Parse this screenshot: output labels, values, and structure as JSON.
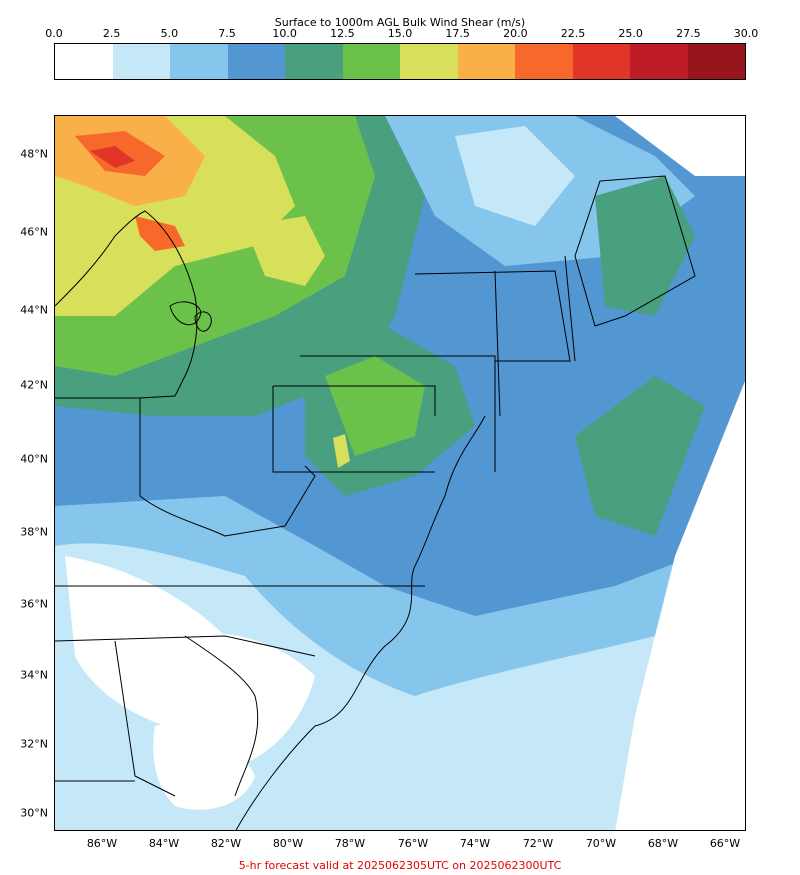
{
  "colorbar": {
    "title": "Surface to 1000m AGL Bulk Wind Shear (m/s)",
    "ticks": [
      "0.0",
      "2.5",
      "5.0",
      "7.5",
      "10.0",
      "12.5",
      "15.0",
      "17.5",
      "20.0",
      "22.5",
      "25.0",
      "27.5",
      "30.0"
    ],
    "colors": [
      "#ffffff",
      "#c4e8f8",
      "#86c6ec",
      "#5296d2",
      "#48a07e",
      "#6cc14a",
      "#d8df5a",
      "#fab049",
      "#f6692b",
      "#e2352a",
      "#be1c27",
      "#96161c"
    ]
  },
  "map": {
    "lat_labels": [
      "48°N",
      "46°N",
      "44°N",
      "42°N",
      "40°N",
      "38°N",
      "36°N",
      "34°N",
      "32°N",
      "30°N"
    ],
    "lon_labels": [
      "86°W",
      "84°W",
      "82°W",
      "80°W",
      "78°W",
      "76°W",
      "74°W",
      "72°W",
      "70°W",
      "68°W",
      "66°W"
    ]
  },
  "footer": "5-hr forecast valid at 2025062305UTC on 2025062300UTC"
}
